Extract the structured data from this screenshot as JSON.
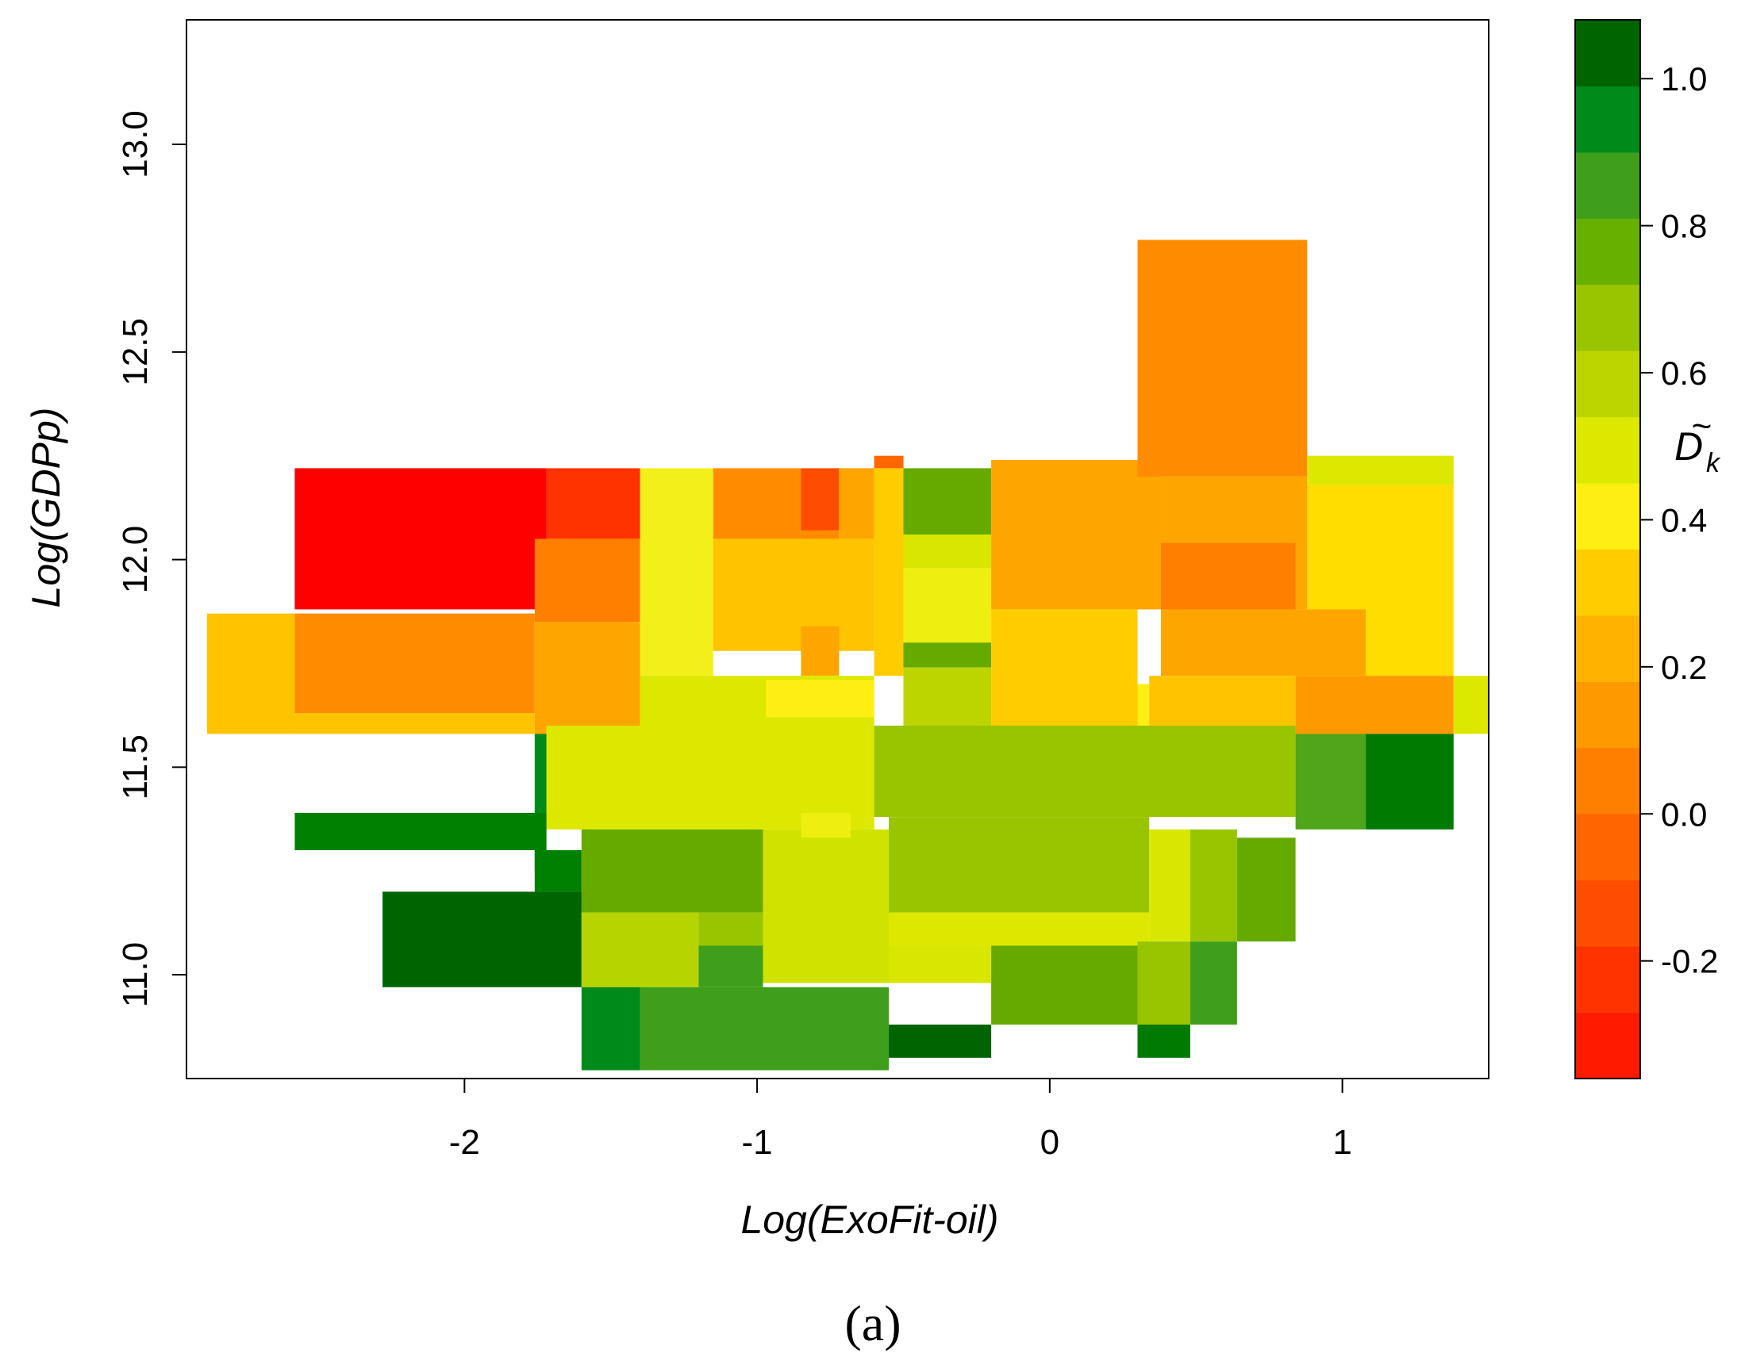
{
  "chart_data": {
    "type": "heatmap",
    "xlabel": "Log(ExoFit-oil)",
    "ylabel": "Log(GDPp)",
    "xlim": [
      -2.95,
      1.5
    ],
    "ylim": [
      10.75,
      13.3
    ],
    "xticks": [
      {
        "value": -2,
        "label": "-2"
      },
      {
        "value": -1,
        "label": "-1"
      },
      {
        "value": 0,
        "label": "0"
      },
      {
        "value": 1,
        "label": "1"
      }
    ],
    "yticks": [
      {
        "value": 11.0,
        "label": "11.0"
      },
      {
        "value": 11.5,
        "label": "11.5"
      },
      {
        "value": 12.0,
        "label": "12.0"
      },
      {
        "value": 12.5,
        "label": "12.5"
      },
      {
        "value": 13.0,
        "label": "13.0"
      }
    ],
    "colorbar": {
      "label_main": "D",
      "label_accent": "~",
      "label_sub": "k",
      "range": [
        -0.36,
        1.08
      ],
      "ticks": [
        {
          "value": -0.2,
          "label": "-0.2"
        },
        {
          "value": 0.0,
          "label": "0.0"
        },
        {
          "value": 0.2,
          "label": "0.2"
        },
        {
          "value": 0.4,
          "label": "0.4"
        },
        {
          "value": 0.6,
          "label": "0.6"
        },
        {
          "value": 0.8,
          "label": "0.8"
        },
        {
          "value": 1.0,
          "label": "1.0"
        }
      ],
      "bins": [
        {
          "from": -0.36,
          "to": -0.27,
          "color": "#ff1a00"
        },
        {
          "from": -0.27,
          "to": -0.18,
          "color": "#ff3300"
        },
        {
          "from": -0.18,
          "to": -0.09,
          "color": "#ff4d00"
        },
        {
          "from": -0.09,
          "to": 0.0,
          "color": "#ff6600"
        },
        {
          "from": 0.0,
          "to": 0.09,
          "color": "#ff7f00"
        },
        {
          "from": 0.09,
          "to": 0.18,
          "color": "#ff9900"
        },
        {
          "from": 0.18,
          "to": 0.27,
          "color": "#ffb300"
        },
        {
          "from": 0.27,
          "to": 0.36,
          "color": "#ffcc00"
        },
        {
          "from": 0.36,
          "to": 0.45,
          "color": "#ffee11"
        },
        {
          "from": 0.45,
          "to": 0.54,
          "color": "#dde800"
        },
        {
          "from": 0.54,
          "to": 0.63,
          "color": "#bcd500"
        },
        {
          "from": 0.63,
          "to": 0.72,
          "color": "#99c400"
        },
        {
          "from": 0.72,
          "to": 0.81,
          "color": "#66b000"
        },
        {
          "from": 0.81,
          "to": 0.9,
          "color": "#3f9f1a"
        },
        {
          "from": 0.9,
          "to": 0.99,
          "color": "#008a1a"
        },
        {
          "from": 0.99,
          "to": 1.08,
          "color": "#006400"
        }
      ]
    },
    "cells": [
      {
        "x0": -2.58,
        "x1": -1.72,
        "y0": 11.88,
        "y1": 12.22,
        "color": "#ff0000"
      },
      {
        "x0": -1.72,
        "x1": -1.4,
        "y0": 12.05,
        "y1": 12.22,
        "color": "#ff3300"
      },
      {
        "x0": -1.76,
        "x1": -1.4,
        "y0": 11.85,
        "y1": 12.05,
        "color": "#ff7f00"
      },
      {
        "x0": -2.88,
        "x1": -2.58,
        "y0": 11.58,
        "y1": 11.87,
        "color": "#ffc300"
      },
      {
        "x0": -2.58,
        "x1": -1.76,
        "y0": 11.63,
        "y1": 11.87,
        "color": "#ff8c00"
      },
      {
        "x0": -2.58,
        "x1": -1.76,
        "y0": 11.58,
        "y1": 11.63,
        "color": "#ffc300"
      },
      {
        "x0": -1.76,
        "x1": -1.4,
        "y0": 11.58,
        "y1": 11.85,
        "color": "#ffa500"
      },
      {
        "x0": -1.4,
        "x1": -1.15,
        "y0": 11.72,
        "y1": 12.22,
        "color": "#f2ef1a"
      },
      {
        "x0": -1.15,
        "x1": -0.85,
        "y0": 12.05,
        "y1": 12.22,
        "color": "#ff8c00"
      },
      {
        "x0": -0.85,
        "x1": -0.72,
        "y0": 12.07,
        "y1": 12.22,
        "color": "#ff4d00"
      },
      {
        "x0": -0.85,
        "x1": -0.72,
        "y0": 12.0,
        "y1": 12.07,
        "color": "#ff8c00"
      },
      {
        "x0": -0.72,
        "x1": -0.6,
        "y0": 12.05,
        "y1": 12.22,
        "color": "#ffa500"
      },
      {
        "x0": -0.6,
        "x1": -0.5,
        "y0": 11.72,
        "y1": 12.22,
        "color": "#ffcc00"
      },
      {
        "x0": -0.6,
        "x1": -0.5,
        "y0": 12.22,
        "y1": 12.25,
        "color": "#ff6600"
      },
      {
        "x0": -1.15,
        "x1": -0.6,
        "y0": 11.78,
        "y1": 12.05,
        "color": "#ffc300"
      },
      {
        "x0": -0.85,
        "x1": -0.72,
        "y0": 11.72,
        "y1": 11.84,
        "color": "#ffa500"
      },
      {
        "x0": -0.5,
        "x1": -0.2,
        "y0": 12.06,
        "y1": 12.22,
        "color": "#66aa00"
      },
      {
        "x0": -0.5,
        "x1": -0.2,
        "y0": 11.98,
        "y1": 12.06,
        "color": "#d8e600"
      },
      {
        "x0": -0.5,
        "x1": -0.2,
        "y0": 11.8,
        "y1": 11.98,
        "color": "#eeee11"
      },
      {
        "x0": -0.5,
        "x1": -0.2,
        "y0": 11.74,
        "y1": 11.8,
        "color": "#66aa00"
      },
      {
        "x0": -0.5,
        "x1": -0.2,
        "y0": 11.6,
        "y1": 11.74,
        "color": "#bcd500"
      },
      {
        "x0": -1.4,
        "x1": -0.6,
        "y0": 11.6,
        "y1": 11.72,
        "color": "#dde800"
      },
      {
        "x0": -0.97,
        "x1": -0.6,
        "y0": 11.62,
        "y1": 11.71,
        "color": "#ffee11"
      },
      {
        "x0": -0.2,
        "x1": 0.38,
        "y0": 11.88,
        "y1": 12.24,
        "color": "#ffa500"
      },
      {
        "x0": 0.3,
        "x1": 0.88,
        "y0": 12.2,
        "y1": 12.77,
        "color": "#ff8c00"
      },
      {
        "x0": 0.38,
        "x1": 0.88,
        "y0": 11.88,
        "y1": 12.2,
        "color": "#ffa500"
      },
      {
        "x0": 0.38,
        "x1": 0.84,
        "y0": 11.88,
        "y1": 12.04,
        "color": "#ff8000"
      },
      {
        "x0": 0.88,
        "x1": 1.38,
        "y0": 12.18,
        "y1": 12.25,
        "color": "#dde800"
      },
      {
        "x0": 0.88,
        "x1": 1.38,
        "y0": 11.72,
        "y1": 12.18,
        "color": "#ffdd00"
      },
      {
        "x0": -0.2,
        "x1": 0.3,
        "y0": 11.6,
        "y1": 11.88,
        "color": "#ffcc00"
      },
      {
        "x0": 0.3,
        "x1": 0.34,
        "y0": 11.6,
        "y1": 11.7,
        "color": "#ffee11"
      },
      {
        "x0": 0.34,
        "x1": 0.84,
        "y0": 11.6,
        "y1": 11.72,
        "color": "#ffc300"
      },
      {
        "x0": 0.38,
        "x1": 1.08,
        "y0": 11.72,
        "y1": 11.88,
        "color": "#ffa500"
      },
      {
        "x0": 0.84,
        "x1": 1.38,
        "y0": 11.58,
        "y1": 11.72,
        "color": "#ff9900"
      },
      {
        "x0": 1.38,
        "x1": 1.5,
        "y0": 11.58,
        "y1": 11.72,
        "color": "#dde800"
      },
      {
        "x0": -1.72,
        "x1": -0.6,
        "y0": 11.35,
        "y1": 11.6,
        "color": "#dde800"
      },
      {
        "x0": -0.6,
        "x1": 0.84,
        "y0": 11.38,
        "y1": 11.6,
        "color": "#99c400"
      },
      {
        "x0": 0.84,
        "x1": 1.08,
        "y0": 11.35,
        "y1": 11.58,
        "color": "#4fa61a"
      },
      {
        "x0": 1.08,
        "x1": 1.38,
        "y0": 11.35,
        "y1": 11.58,
        "color": "#007a00"
      },
      {
        "x0": -1.76,
        "x1": -1.72,
        "y0": 11.25,
        "y1": 11.58,
        "color": "#008a1a"
      },
      {
        "x0": -2.58,
        "x1": -1.72,
        "y0": 11.3,
        "y1": 11.39,
        "color": "#008000"
      },
      {
        "x0": -1.76,
        "x1": -1.6,
        "y0": 11.2,
        "y1": 11.3,
        "color": "#008000"
      },
      {
        "x0": -1.6,
        "x1": -0.98,
        "y0": 11.15,
        "y1": 11.35,
        "color": "#66aa00"
      },
      {
        "x0": -0.98,
        "x1": -0.55,
        "y0": 10.98,
        "y1": 11.35,
        "color": "#d0e300"
      },
      {
        "x0": -0.85,
        "x1": -0.68,
        "y0": 11.33,
        "y1": 11.39,
        "color": "#eeee11"
      },
      {
        "x0": -0.55,
        "x1": 0.34,
        "y0": 11.15,
        "y1": 11.38,
        "color": "#99c400"
      },
      {
        "x0": 0.34,
        "x1": 0.48,
        "y0": 11.08,
        "y1": 11.35,
        "color": "#d8e600"
      },
      {
        "x0": 0.48,
        "x1": 0.64,
        "y0": 11.08,
        "y1": 11.35,
        "color": "#99c400"
      },
      {
        "x0": 0.64,
        "x1": 0.84,
        "y0": 11.08,
        "y1": 11.33,
        "color": "#66aa00"
      },
      {
        "x0": -2.28,
        "x1": -1.6,
        "y0": 10.97,
        "y1": 11.2,
        "color": "#006400"
      },
      {
        "x0": -1.6,
        "x1": -1.2,
        "y0": 10.97,
        "y1": 11.15,
        "color": "#b5d400"
      },
      {
        "x0": -1.2,
        "x1": -0.98,
        "y0": 11.07,
        "y1": 11.15,
        "color": "#99c400"
      },
      {
        "x0": -1.2,
        "x1": -0.98,
        "y0": 10.97,
        "y1": 11.07,
        "color": "#3f9f1a"
      },
      {
        "x0": -0.55,
        "x1": 0.34,
        "y0": 11.07,
        "y1": 11.15,
        "color": "#dde800"
      },
      {
        "x0": -0.55,
        "x1": -0.2,
        "y0": 10.98,
        "y1": 11.07,
        "color": "#d8e600"
      },
      {
        "x0": -0.2,
        "x1": 0.3,
        "y0": 10.88,
        "y1": 11.07,
        "color": "#66aa00"
      },
      {
        "x0": 0.3,
        "x1": 0.48,
        "y0": 10.88,
        "y1": 11.08,
        "color": "#99c400"
      },
      {
        "x0": 0.48,
        "x1": 0.64,
        "y0": 10.88,
        "y1": 11.08,
        "color": "#3f9f1a"
      },
      {
        "x0": -1.6,
        "x1": -1.4,
        "y0": 10.77,
        "y1": 10.97,
        "color": "#008a1a"
      },
      {
        "x0": -1.4,
        "x1": -0.55,
        "y0": 10.77,
        "y1": 10.97,
        "color": "#3f9f1a"
      },
      {
        "x0": -0.55,
        "x1": -0.2,
        "y0": 10.8,
        "y1": 10.88,
        "color": "#006400"
      },
      {
        "x0": 0.3,
        "x1": 0.48,
        "y0": 10.8,
        "y1": 10.88,
        "color": "#007a00"
      }
    ]
  },
  "caption": "(a)"
}
